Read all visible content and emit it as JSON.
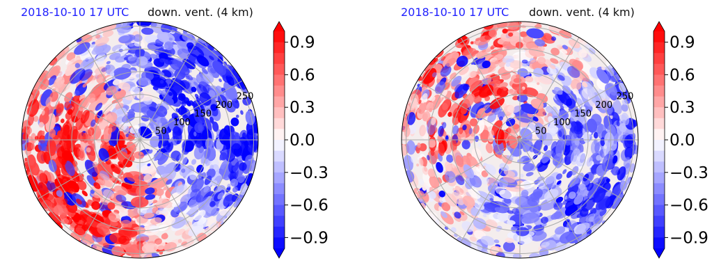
{
  "panels": [
    {
      "date_label": "2018-10-10 17 UTC",
      "variable_label": "down. vent. (4 km)"
    },
    {
      "date_label": "2018-10-10 17 UTC",
      "variable_label": "down. vent. (4 km)"
    }
  ],
  "chart_data": [
    {
      "type": "heatmap",
      "projection": "polar",
      "title_left": "2018-10-10 17 UTC",
      "title_right": "down. vent. (4 km)",
      "radial_ticks": [
        50,
        100,
        150,
        200,
        250
      ],
      "colorbar": {
        "ticks": [
          0.9,
          0.6,
          0.3,
          0.0,
          -0.3,
          -0.6,
          -0.9
        ],
        "tick_labels": [
          "0.9",
          "0.6",
          "0.3",
          "0.0",
          "−0.3",
          "−0.6",
          "−0.9"
        ],
        "vmin": -1.0,
        "vmax": 1.0,
        "extend": "both",
        "colormap": "bwr"
      },
      "grid": true
    },
    {
      "type": "heatmap",
      "projection": "polar",
      "title_left": "2018-10-10 17 UTC",
      "title_right": "down. vent. (4 km)",
      "radial_ticks": [
        50,
        100,
        150,
        200,
        250
      ],
      "colorbar": {
        "ticks": [
          0.9,
          0.6,
          0.3,
          0.0,
          -0.3,
          -0.6,
          -0.9
        ],
        "tick_labels": [
          "0.9",
          "0.6",
          "0.3",
          "0.0",
          "−0.3",
          "−0.6",
          "−0.9"
        ],
        "vmin": -1.0,
        "vmax": 1.0,
        "extend": "both",
        "colormap": "bwr"
      },
      "grid": true
    }
  ]
}
